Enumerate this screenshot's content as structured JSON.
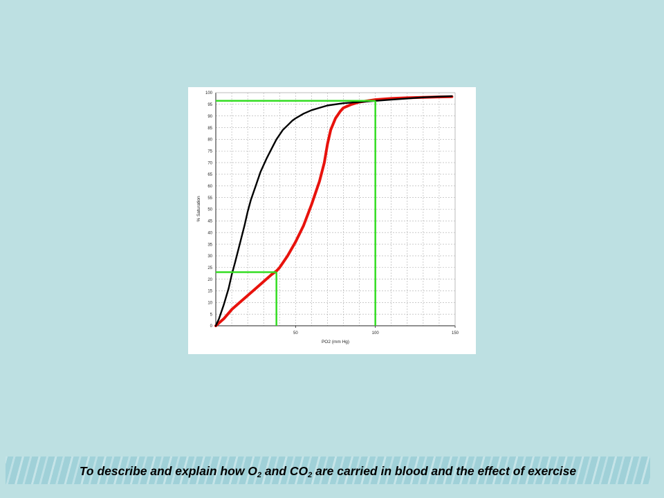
{
  "footer": {
    "part1": "To describe and explain how O",
    "sub1": "2",
    "part2": " and CO",
    "sub2": "2",
    "part3": " are carried in blood and the effect of exercise"
  },
  "colors": {
    "background": "#bde0e2",
    "panel": "#ffffff",
    "normal_curve": "#000000",
    "shifted_curve": "#e8120c",
    "guide_lines": "#33dd22",
    "grid": "#aaaaaa"
  },
  "chart_data": {
    "type": "line",
    "title": "",
    "xlabel": "PO2 (mm Hg)",
    "ylabel": "% Saturation",
    "xlim": [
      0,
      150
    ],
    "ylim": [
      0,
      100
    ],
    "xticks": [
      50,
      100,
      150
    ],
    "yticks": [
      0,
      5,
      10,
      15,
      20,
      25,
      30,
      35,
      40,
      45,
      50,
      55,
      60,
      65,
      70,
      75,
      80,
      85,
      90,
      95,
      100
    ],
    "grid": true,
    "legend": "none",
    "series": [
      {
        "color": "#000000",
        "x": [
          0,
          2,
          5,
          8,
          10,
          12,
          15,
          18,
          20,
          22,
          25,
          28,
          30,
          32,
          35,
          38,
          40,
          42,
          45,
          48,
          50,
          55,
          60,
          65,
          70,
          80,
          90,
          100,
          110,
          120,
          130,
          140,
          148
        ],
        "y": [
          0,
          3,
          9,
          16,
          22,
          27,
          35,
          43,
          49,
          54,
          60,
          66,
          69,
          72,
          76,
          80,
          82,
          84,
          86,
          88,
          89,
          91,
          92.5,
          93.5,
          94.5,
          95.5,
          96,
          96.5,
          97,
          97.5,
          98,
          98.3,
          98.5
        ]
      },
      {
        "color": "#e8120c",
        "x": [
          0,
          5,
          10,
          15,
          20,
          25,
          30,
          35,
          38,
          40,
          45,
          50,
          55,
          60,
          62,
          65,
          68,
          70,
          72,
          75,
          78,
          80,
          85,
          90,
          95,
          100,
          110,
          120,
          130,
          140,
          148
        ],
        "y": [
          0,
          3,
          7,
          10,
          13,
          16,
          19,
          22,
          23.5,
          25,
          30,
          36,
          43,
          52,
          56,
          62,
          70,
          78,
          84,
          89,
          92,
          93.5,
          95,
          96,
          96.5,
          97,
          97.5,
          97.8,
          98,
          98.2,
          98.3
        ]
      }
    ],
    "guide_lines": [
      {
        "x": 38,
        "y": 23,
        "color": "#33dd22"
      },
      {
        "x": 100,
        "y": 96.5,
        "color": "#33dd22"
      }
    ]
  }
}
